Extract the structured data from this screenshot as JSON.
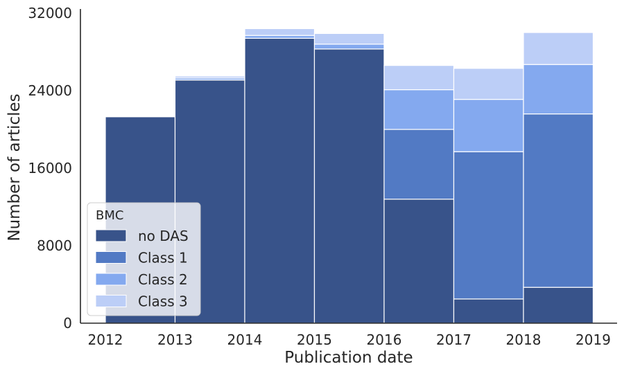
{
  "chart_data": {
    "type": "bar",
    "stacked": true,
    "categories": [
      "2012",
      "2013",
      "2014",
      "2015",
      "2016",
      "2017",
      "2018"
    ],
    "x_tick_labels": [
      "2012",
      "2013",
      "2014",
      "2015",
      "2016",
      "2017",
      "2018",
      "2019"
    ],
    "xlabel": "Publication date",
    "ylabel": "Number of articles",
    "ylim": [
      0,
      32000
    ],
    "y_ticks": [
      0,
      8000,
      16000,
      24000,
      32000
    ],
    "grid": false,
    "legend": {
      "title": "BMC",
      "placement": "lower-left"
    },
    "series": [
      {
        "name": "no DAS",
        "color": "#38538a",
        "values": [
          21300,
          25100,
          29400,
          28300,
          12800,
          2500,
          3700
        ]
      },
      {
        "name": "Class 1",
        "color": "#527ac4",
        "values": [
          0,
          0,
          0,
          0,
          7200,
          15200,
          17900
        ]
      },
      {
        "name": "Class 2",
        "color": "#84a9ef",
        "values": [
          0,
          200,
          300,
          500,
          4100,
          5400,
          5100
        ]
      },
      {
        "name": "Class 3",
        "color": "#bccef7",
        "values": [
          0,
          200,
          700,
          1100,
          2500,
          3200,
          3300
        ]
      }
    ]
  }
}
